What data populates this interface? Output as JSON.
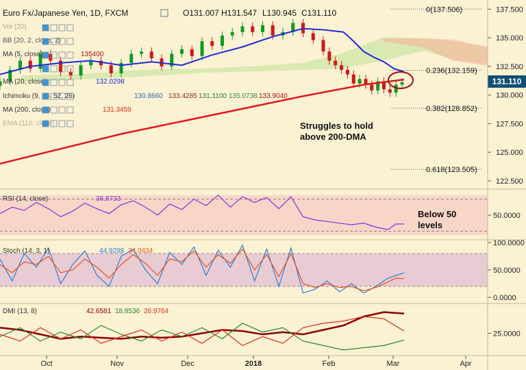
{
  "chart_data": {
    "type": "line",
    "symbol": "EURJPY",
    "title": "Euro Fx/Japanese Yen, 1D, FXCM",
    "ohlc": {
      "open": "O131.007",
      "high": "H131.547",
      "low": "L130.945",
      "close": "C131.110"
    },
    "last_price": "131.110",
    "x_ticks": [
      "Oct",
      "Nov",
      "Dec",
      "2018",
      "Feb",
      "Mar",
      "Apr"
    ],
    "main_y_ticks": [
      "137.500",
      "135.000",
      "132.500",
      "130.000",
      "127.500",
      "125.000",
      "122.500"
    ],
    "main_ylim": [
      121.9,
      138.3
    ],
    "indicator_labels": {
      "vol": "Vol (20)",
      "bb": "BB (20, 2, close, 2)",
      "ma_a": "MA (5, close)",
      "ma_a_value": "135400",
      "ma_20": "MA (20, close)",
      "ma_20_value": "132.0298",
      "ichimoku": "Ichimoku (9, 26, 52, 26)",
      "ichimoku_values": [
        "130.8660",
        "133.4285",
        "131.1100",
        "135.0738",
        "133.9040"
      ],
      "ma_200": "MA (200, close)",
      "ma_200_value": "131.3459",
      "ema": "EMA (110, close)"
    },
    "fib_levels": [
      {
        "label": "0(137.506)",
        "value": 137.506
      },
      {
        "label": "0.236(132.159)",
        "value": 132.159
      },
      {
        "label": "0.382(128.852)",
        "value": 128.852
      },
      {
        "label": "0.618(123.505)",
        "value": 123.505
      }
    ],
    "annotations": [
      {
        "text": "Struggles to hold above 200-DMA"
      },
      {
        "text": "Below 50 levels"
      }
    ],
    "series": [
      {
        "name": "MA (200, close)",
        "color": "#e0161a",
        "x": [
          0,
          30,
          60,
          90,
          120,
          150,
          180,
          200
        ],
        "y": [
          124.0,
          125.3,
          126.6,
          127.7,
          128.8,
          129.9,
          130.9,
          131.35
        ]
      },
      {
        "name": "MA (20, close)",
        "color": "#1a2bd6",
        "x": [
          0,
          15,
          30,
          45,
          60,
          75,
          90,
          105,
          120,
          135,
          150,
          160,
          165,
          170,
          175,
          180,
          185,
          190,
          195,
          200
        ],
        "y": [
          131.8,
          132.5,
          132.8,
          133.0,
          132.6,
          132.9,
          132.6,
          133.5,
          134.2,
          135.1,
          135.8,
          135.7,
          135.6,
          135.5,
          134.7,
          133.8,
          133.3,
          132.9,
          132.3,
          132.03
        ]
      }
    ],
    "candles": {
      "up_color": "#119a26",
      "down_color": "#cc1a1a",
      "x": [
        0,
        5,
        10,
        15,
        20,
        25,
        30,
        35,
        40,
        45,
        50,
        55,
        60,
        65,
        70,
        75,
        80,
        85,
        90,
        95,
        100,
        105,
        110,
        115,
        120,
        125,
        130,
        135,
        140,
        145,
        150,
        155,
        160,
        163,
        166,
        169,
        172,
        175,
        178,
        181,
        184,
        187,
        190,
        193,
        196,
        199
      ],
      "close": [
        131.2,
        132.2,
        133.0,
        132.3,
        133.6,
        133.0,
        132.0,
        131.7,
        132.6,
        133.0,
        132.6,
        131.9,
        132.8,
        133.6,
        133.8,
        133.2,
        132.5,
        133.6,
        134.0,
        133.4,
        134.7,
        134.3,
        135.2,
        135.5,
        136.0,
        135.5,
        136.1,
        135.2,
        135.5,
        136.3,
        135.4,
        134.8,
        133.8,
        133.0,
        132.6,
        132.2,
        131.8,
        131.0,
        131.4,
        130.9,
        130.4,
        131.2,
        130.5,
        130.2,
        130.9,
        131.11
      ]
    },
    "panels": [
      {
        "name": "RSI (14, close)",
        "value": "38.8733",
        "y_ticks": [
          "50.0000"
        ],
        "ylim": [
          20,
          80
        ],
        "band": [
          30,
          70
        ],
        "series": [
          {
            "name": "RSI",
            "color": "#8a2be2",
            "x": [
              0,
              6,
              12,
              18,
              24,
              30,
              36,
              42,
              48,
              54,
              60,
              66,
              72,
              78,
              84,
              90,
              96,
              102,
              108,
              114,
              120,
              126,
              132,
              138,
              144,
              150,
              156,
              162,
              168,
              174,
              180,
              186,
              192,
              196,
              200
            ],
            "y": [
              52,
              60,
              56,
              66,
              58,
              48,
              55,
              65,
              58,
              52,
              63,
              68,
              60,
              50,
              64,
              57,
              70,
              62,
              75,
              60,
              73,
              66,
              72,
              58,
              73,
              48,
              44,
              42,
              40,
              38,
              40,
              35,
              32,
              39,
              38.9
            ]
          }
        ]
      },
      {
        "name": "Stoch (14, 3, 1)",
        "values": [
          "44.9298",
          "34.0434"
        ],
        "y_ticks": [
          "100.0000",
          "50.0000",
          "0.0000"
        ],
        "ylim": [
          0,
          100
        ],
        "band": [
          20,
          80
        ],
        "series": [
          {
            "name": "%K",
            "color": "#2c7fd6",
            "x": [
              0,
              6,
              12,
              18,
              24,
              30,
              36,
              42,
              48,
              54,
              60,
              66,
              72,
              78,
              84,
              90,
              96,
              102,
              108,
              114,
              120,
              126,
              132,
              138,
              144,
              150,
              156,
              162,
              168,
              174,
              180,
              186,
              192,
              196,
              200
            ],
            "y": [
              70,
              30,
              80,
              55,
              90,
              25,
              60,
              85,
              40,
              20,
              75,
              88,
              50,
              25,
              82,
              60,
              92,
              40,
              86,
              55,
              95,
              30,
              88,
              20,
              90,
              8,
              15,
              30,
              10,
              25,
              8,
              20,
              35,
              40,
              44.9
            ]
          },
          {
            "name": "%D",
            "color": "#e6541a",
            "x": [
              0,
              6,
              12,
              18,
              24,
              30,
              36,
              42,
              48,
              54,
              60,
              66,
              72,
              78,
              84,
              90,
              96,
              102,
              108,
              114,
              120,
              126,
              132,
              138,
              144,
              150,
              156,
              162,
              168,
              174,
              180,
              186,
              192,
              196,
              200
            ],
            "y": [
              60,
              45,
              65,
              60,
              75,
              45,
              50,
              70,
              55,
              35,
              60,
              78,
              62,
              40,
              70,
              65,
              85,
              55,
              78,
              62,
              88,
              50,
              78,
              38,
              80,
              25,
              18,
              25,
              18,
              20,
              12,
              18,
              28,
              35,
              34.0
            ]
          }
        ]
      },
      {
        "name": "DMI (13, 8)",
        "values": [
          "42.6581",
          "18.8536",
          "26.9764"
        ],
        "y_ticks": [
          "25.0000"
        ],
        "ylim": [
          8,
          48
        ],
        "series": [
          {
            "name": "ADX",
            "color": "#8b0000",
            "x": [
              0,
              10,
              20,
              30,
              40,
              50,
              60,
              70,
              80,
              90,
              100,
              110,
              120,
              130,
              140,
              150,
              160,
              170,
              180,
              190,
              200
            ],
            "y": [
              30,
              28,
              24,
              20,
              22,
              21,
              20,
              22,
              21,
              22,
              25,
              28,
              27,
              24,
              26,
              24,
              28,
              32,
              40,
              44,
              42.7
            ]
          },
          {
            "name": "+DI",
            "color": "#1f8a2a",
            "x": [
              0,
              10,
              20,
              30,
              40,
              50,
              60,
              70,
              80,
              90,
              100,
              110,
              120,
              130,
              140,
              150,
              160,
              170,
              180,
              190,
              200
            ],
            "y": [
              22,
              30,
              18,
              26,
              20,
              32,
              24,
              18,
              28,
              22,
              30,
              20,
              34,
              26,
              30,
              18,
              14,
              10,
              12,
              14,
              18.9
            ]
          },
          {
            "name": "-DI",
            "color": "#d9301e",
            "x": [
              0,
              10,
              20,
              30,
              40,
              50,
              60,
              70,
              80,
              90,
              100,
              110,
              120,
              130,
              140,
              150,
              160,
              170,
              180,
              190,
              200
            ],
            "y": [
              24,
              18,
              30,
              20,
              28,
              16,
              22,
              28,
              18,
              26,
              16,
              28,
              14,
              22,
              16,
              30,
              34,
              36,
              40,
              38,
              27.0
            ]
          }
        ]
      }
    ]
  }
}
